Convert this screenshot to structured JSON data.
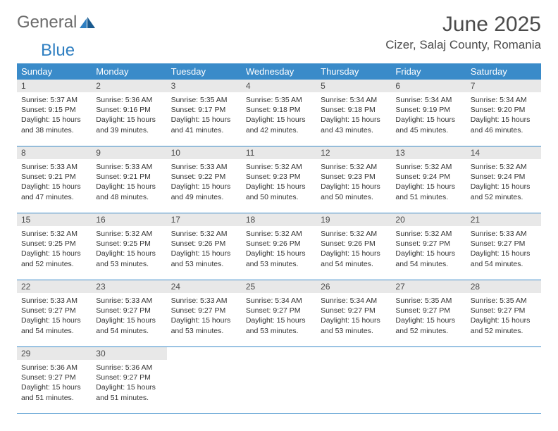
{
  "logo": {
    "word1": "General",
    "word2": "Blue"
  },
  "title": "June 2025",
  "location": "Cizer, Salaj County, Romania",
  "colors": {
    "header_bg": "#3a8bc9",
    "header_text": "#ffffff",
    "daynum_bg": "#e8e8e8",
    "text": "#333333",
    "logo_gray": "#6b6b6b",
    "logo_blue": "#2f7fc1"
  },
  "weekdays": [
    "Sunday",
    "Monday",
    "Tuesday",
    "Wednesday",
    "Thursday",
    "Friday",
    "Saturday"
  ],
  "weeks": [
    [
      {
        "n": "1",
        "sr": "5:37 AM",
        "ss": "9:15 PM",
        "dl": "15 hours and 38 minutes."
      },
      {
        "n": "2",
        "sr": "5:36 AM",
        "ss": "9:16 PM",
        "dl": "15 hours and 39 minutes."
      },
      {
        "n": "3",
        "sr": "5:35 AM",
        "ss": "9:17 PM",
        "dl": "15 hours and 41 minutes."
      },
      {
        "n": "4",
        "sr": "5:35 AM",
        "ss": "9:18 PM",
        "dl": "15 hours and 42 minutes."
      },
      {
        "n": "5",
        "sr": "5:34 AM",
        "ss": "9:18 PM",
        "dl": "15 hours and 43 minutes."
      },
      {
        "n": "6",
        "sr": "5:34 AM",
        "ss": "9:19 PM",
        "dl": "15 hours and 45 minutes."
      },
      {
        "n": "7",
        "sr": "5:34 AM",
        "ss": "9:20 PM",
        "dl": "15 hours and 46 minutes."
      }
    ],
    [
      {
        "n": "8",
        "sr": "5:33 AM",
        "ss": "9:21 PM",
        "dl": "15 hours and 47 minutes."
      },
      {
        "n": "9",
        "sr": "5:33 AM",
        "ss": "9:21 PM",
        "dl": "15 hours and 48 minutes."
      },
      {
        "n": "10",
        "sr": "5:33 AM",
        "ss": "9:22 PM",
        "dl": "15 hours and 49 minutes."
      },
      {
        "n": "11",
        "sr": "5:32 AM",
        "ss": "9:23 PM",
        "dl": "15 hours and 50 minutes."
      },
      {
        "n": "12",
        "sr": "5:32 AM",
        "ss": "9:23 PM",
        "dl": "15 hours and 50 minutes."
      },
      {
        "n": "13",
        "sr": "5:32 AM",
        "ss": "9:24 PM",
        "dl": "15 hours and 51 minutes."
      },
      {
        "n": "14",
        "sr": "5:32 AM",
        "ss": "9:24 PM",
        "dl": "15 hours and 52 minutes."
      }
    ],
    [
      {
        "n": "15",
        "sr": "5:32 AM",
        "ss": "9:25 PM",
        "dl": "15 hours and 52 minutes."
      },
      {
        "n": "16",
        "sr": "5:32 AM",
        "ss": "9:25 PM",
        "dl": "15 hours and 53 minutes."
      },
      {
        "n": "17",
        "sr": "5:32 AM",
        "ss": "9:26 PM",
        "dl": "15 hours and 53 minutes."
      },
      {
        "n": "18",
        "sr": "5:32 AM",
        "ss": "9:26 PM",
        "dl": "15 hours and 53 minutes."
      },
      {
        "n": "19",
        "sr": "5:32 AM",
        "ss": "9:26 PM",
        "dl": "15 hours and 54 minutes."
      },
      {
        "n": "20",
        "sr": "5:32 AM",
        "ss": "9:27 PM",
        "dl": "15 hours and 54 minutes."
      },
      {
        "n": "21",
        "sr": "5:33 AM",
        "ss": "9:27 PM",
        "dl": "15 hours and 54 minutes."
      }
    ],
    [
      {
        "n": "22",
        "sr": "5:33 AM",
        "ss": "9:27 PM",
        "dl": "15 hours and 54 minutes."
      },
      {
        "n": "23",
        "sr": "5:33 AM",
        "ss": "9:27 PM",
        "dl": "15 hours and 54 minutes."
      },
      {
        "n": "24",
        "sr": "5:33 AM",
        "ss": "9:27 PM",
        "dl": "15 hours and 53 minutes."
      },
      {
        "n": "25",
        "sr": "5:34 AM",
        "ss": "9:27 PM",
        "dl": "15 hours and 53 minutes."
      },
      {
        "n": "26",
        "sr": "5:34 AM",
        "ss": "9:27 PM",
        "dl": "15 hours and 53 minutes."
      },
      {
        "n": "27",
        "sr": "5:35 AM",
        "ss": "9:27 PM",
        "dl": "15 hours and 52 minutes."
      },
      {
        "n": "28",
        "sr": "5:35 AM",
        "ss": "9:27 PM",
        "dl": "15 hours and 52 minutes."
      }
    ],
    [
      {
        "n": "29",
        "sr": "5:36 AM",
        "ss": "9:27 PM",
        "dl": "15 hours and 51 minutes."
      },
      {
        "n": "30",
        "sr": "5:36 AM",
        "ss": "9:27 PM",
        "dl": "15 hours and 51 minutes."
      },
      null,
      null,
      null,
      null,
      null
    ]
  ],
  "labels": {
    "sunrise": "Sunrise:",
    "sunset": "Sunset:",
    "daylight": "Daylight:"
  }
}
